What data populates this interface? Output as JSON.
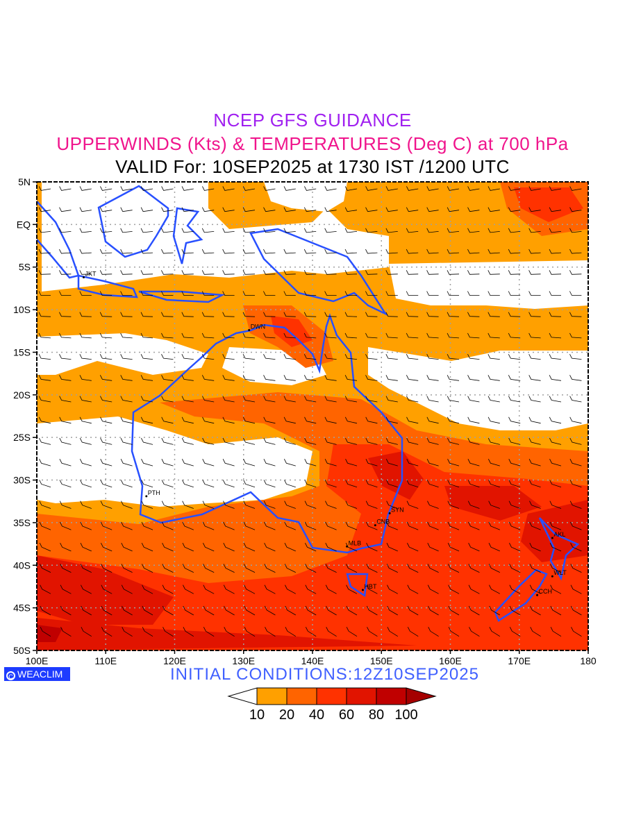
{
  "title": {
    "line1": "NCEP GFS GUIDANCE",
    "line2": "UPPERWINDS (Kts) & TEMPERATURES (Deg C) at 700 hPa",
    "line3": "VALID For: 10SEP2025 at 1730 IST /1200 UTC"
  },
  "map": {
    "lat_labels": [
      "5N",
      "EQ",
      "5S",
      "10S",
      "15S",
      "20S",
      "25S",
      "30S",
      "35S",
      "40S",
      "45S",
      "50S"
    ],
    "lon_labels": [
      "100E",
      "110E",
      "120E",
      "130E",
      "140E",
      "150E",
      "160E",
      "170E",
      "180"
    ],
    "cities": [
      {
        "name": "JKT",
        "lon": 106.8,
        "lat": -6.2
      },
      {
        "name": "DWN",
        "lon": 130.8,
        "lat": -12.4
      },
      {
        "name": "PTH",
        "lon": 115.9,
        "lat": -31.9
      },
      {
        "name": "SYN",
        "lon": 151.2,
        "lat": -33.9
      },
      {
        "name": "CNB",
        "lon": 149.1,
        "lat": -35.3
      },
      {
        "name": "MLB",
        "lon": 145.0,
        "lat": -37.8
      },
      {
        "name": "HBT",
        "lon": 147.3,
        "lat": -42.9
      },
      {
        "name": "AKL",
        "lon": 174.8,
        "lat": -36.8
      },
      {
        "name": "WLT",
        "lon": 174.8,
        "lat": -41.3
      },
      {
        "name": "CCH",
        "lon": 172.6,
        "lat": -43.5
      }
    ]
  },
  "logo": "WEACLIM",
  "initial_conditions": "INITIAL  CONDITIONS:12Z10SEP2025",
  "colorbar": {
    "labels": [
      "10",
      "20",
      "40",
      "60",
      "80",
      "100"
    ],
    "colors": [
      "#ffffff",
      "#ffa000",
      "#ff6400",
      "#ff3200",
      "#e11400",
      "#c00000",
      "#a50000"
    ]
  },
  "colors": {
    "coast": "#2850ff",
    "grid": "#a0a0a0"
  }
}
